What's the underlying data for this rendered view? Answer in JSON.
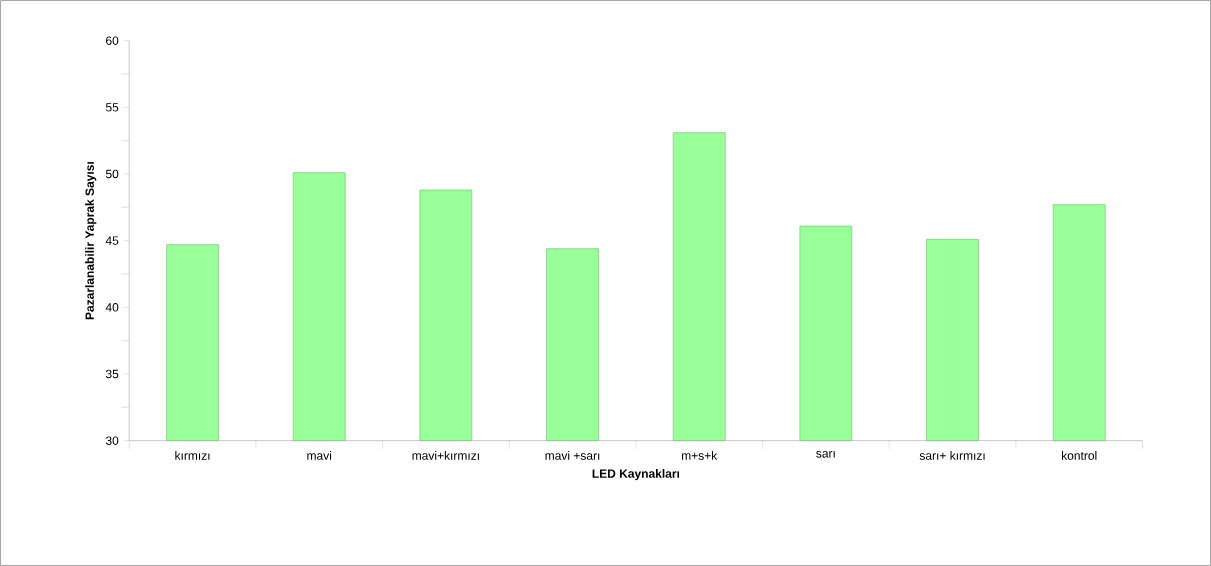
{
  "chart_data": {
    "type": "bar",
    "xlabel": "LED Kaynakları",
    "ylabel": "Pazarlanabilir  Yaprak Sayısı",
    "categories": [
      "kırmızı",
      "mavi",
      "mavi+kırmızı",
      "mavi +sarı",
      "m+s+k",
      "sarı",
      "sarı+ kırmızı",
      "kontrol"
    ],
    "values": [
      44.7,
      50.1,
      48.8,
      44.4,
      53.1,
      46.1,
      45.1,
      47.7
    ],
    "color": "#99ff99",
    "ylim": [
      30,
      60
    ],
    "yticks": [
      30,
      35,
      40,
      45,
      50,
      55,
      60
    ],
    "grid": false
  }
}
